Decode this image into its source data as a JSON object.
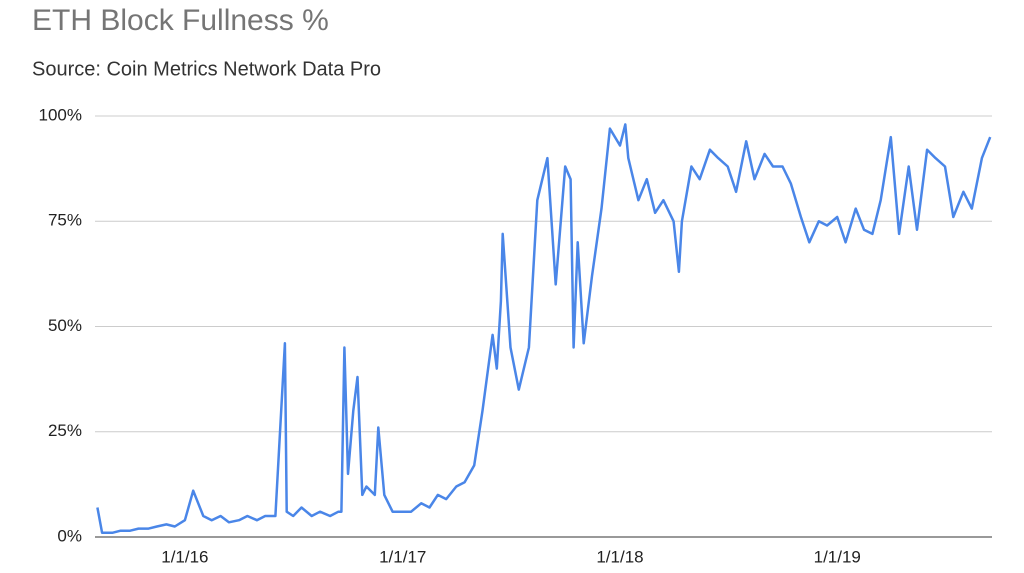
{
  "chart_data": {
    "type": "line",
    "title": "ETH Block Fullness %",
    "subtitle": "Source: Coin Metrics Network Data Pro",
    "x": [
      "8/7/15",
      "8/15/15",
      "9/1/15",
      "9/15/15",
      "10/1/15",
      "10/15/15",
      "11/1/15",
      "11/15/15",
      "12/1/15",
      "12/15/15",
      "1/1/16",
      "1/15/16",
      "2/1/16",
      "2/15/16",
      "3/1/16",
      "3/15/16",
      "4/1/16",
      "4/15/16",
      "5/1/16",
      "5/15/16",
      "6/1/16",
      "6/17/16",
      "6/20/16",
      "7/1/16",
      "7/15/16",
      "8/1/16",
      "8/15/16",
      "9/1/16",
      "9/15/16",
      "9/20/16",
      "9/25/16",
      "10/1/16",
      "10/10/16",
      "10/17/16",
      "10/25/16",
      "11/1/16",
      "11/15/16",
      "11/21/16",
      "12/1/16",
      "12/15/16",
      "1/1/17",
      "1/15/17",
      "2/1/17",
      "2/15/17",
      "3/1/17",
      "3/15/17",
      "4/1/17",
      "4/15/17",
      "5/1/17",
      "5/15/17",
      "6/1/17",
      "6/8/17",
      "6/15/17",
      "6/18/17",
      "7/1/17",
      "7/15/17",
      "8/1/17",
      "8/15/17",
      "9/1/17",
      "9/15/17",
      "10/1/17",
      "10/10/17",
      "10/15/17",
      "10/22/17",
      "11/1/17",
      "11/15/17",
      "12/1/17",
      "12/15/17",
      "1/1/18",
      "1/10/18",
      "1/15/18",
      "2/1/18",
      "2/15/18",
      "3/1/18",
      "3/15/18",
      "4/1/18",
      "4/10/18",
      "4/15/18",
      "5/1/18",
      "5/15/18",
      "6/1/18",
      "6/15/18",
      "7/1/18",
      "7/15/18",
      "8/1/18",
      "8/15/18",
      "9/1/18",
      "9/15/18",
      "10/1/18",
      "10/15/18",
      "11/1/18",
      "11/15/18",
      "12/1/18",
      "12/15/18",
      "1/1/19",
      "1/15/19",
      "2/1/19",
      "2/15/19",
      "3/1/19",
      "3/15/19",
      "4/1/19",
      "4/15/19",
      "5/1/19",
      "5/15/19",
      "6/1/19",
      "6/15/19",
      "7/1/19",
      "7/15/19",
      "8/1/19",
      "8/15/19",
      "9/1/19",
      "9/15/19"
    ],
    "series": [
      {
        "color": "#4a86e8",
        "values": [
          7,
          1,
          1,
          1.5,
          1.5,
          2,
          2,
          2.5,
          3,
          2.5,
          4,
          11,
          5,
          4,
          5,
          3.5,
          4,
          5,
          4,
          5,
          5,
          46,
          6,
          5,
          7,
          5,
          6,
          5,
          6,
          6,
          45,
          15,
          30,
          38,
          10,
          12,
          10,
          26,
          10,
          6,
          6,
          6,
          8,
          7,
          10,
          9,
          12,
          13,
          17,
          30,
          48,
          40,
          56,
          72,
          45,
          35,
          45,
          80,
          90,
          60,
          88,
          85,
          45,
          70,
          46,
          62,
          78,
          97,
          93,
          98,
          90,
          80,
          85,
          77,
          80,
          75,
          63,
          75,
          88,
          85,
          92,
          90,
          88,
          82,
          94,
          85,
          91,
          88,
          88,
          84,
          76,
          70,
          75,
          74,
          76,
          70,
          78,
          73,
          72,
          80,
          95,
          72,
          88,
          73,
          92,
          90,
          88,
          76,
          82,
          78,
          90,
          95
        ]
      }
    ],
    "xlim": [
      "8/3/15",
      "9/18/19"
    ],
    "xticks": [
      "1/1/16",
      "1/1/17",
      "1/1/18",
      "1/1/19"
    ],
    "ylim": [
      0,
      100
    ],
    "yticks": [
      {
        "value": 0,
        "label": "0%"
      },
      {
        "value": 25,
        "label": "25%"
      },
      {
        "value": 50,
        "label": "50%"
      },
      {
        "value": 75,
        "label": "75%"
      },
      {
        "value": 100,
        "label": "100%"
      }
    ],
    "grid": true
  }
}
